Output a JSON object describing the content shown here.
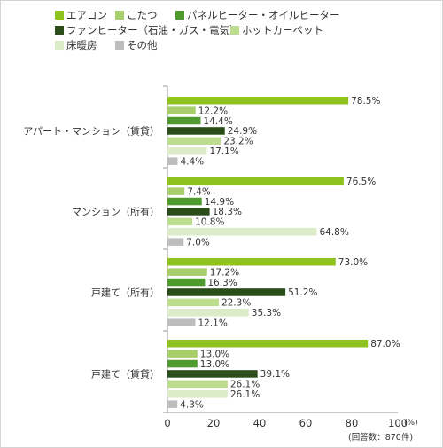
{
  "chart_data": {
    "type": "bar",
    "orientation": "horizontal",
    "categories": [
      "アパート・マンション（賃貸）",
      "マンション（所有）",
      "戸建て（所有）",
      "戸建て（賃貸）"
    ],
    "series": [
      {
        "name": "エアコン",
        "color": "#8dc21f",
        "values": [
          78.5,
          76.5,
          73.0,
          87.0
        ]
      },
      {
        "name": "こたつ",
        "color": "#a8ce6c",
        "values": [
          12.2,
          7.4,
          17.2,
          13.0
        ]
      },
      {
        "name": "パネルヒーター・オイルヒーター",
        "color": "#4e9a2e",
        "values": [
          14.4,
          14.9,
          16.3,
          13.0
        ]
      },
      {
        "name": "ファンヒーター（石油・ガス・電気）",
        "color": "#2a4d1a",
        "values": [
          24.9,
          18.3,
          51.2,
          39.1
        ]
      },
      {
        "name": "ホットカーペット",
        "color": "#bcdc8e",
        "values": [
          23.2,
          10.8,
          22.3,
          26.1
        ]
      },
      {
        "name": "床暖房",
        "color": "#dcebc8",
        "values": [
          17.1,
          64.8,
          35.3,
          26.1
        ]
      },
      {
        "name": "その他",
        "color": "#bdbdbd",
        "values": [
          4.4,
          7.0,
          12.1,
          4.3
        ]
      }
    ],
    "value_labels": [
      [
        "78.5%",
        "12.2%",
        "14.4%",
        "24.9%",
        "23.2%",
        "17.1%",
        "4.4%"
      ],
      [
        "76.5%",
        "7.4%",
        "14.9%",
        "18.3%",
        "10.8%",
        "64.8%",
        "7.0%"
      ],
      [
        "73.0%",
        "17.2%",
        "16.3%",
        "51.2%",
        "22.3%",
        "35.3%",
        "12.1%"
      ],
      [
        "87.0%",
        "13.0%",
        "13.0%",
        "39.1%",
        "26.1%",
        "26.1%",
        "4.3%"
      ]
    ],
    "xlim": [
      0,
      100
    ],
    "x_ticks": [
      "0",
      "20",
      "40",
      "60",
      "80",
      "100"
    ],
    "x_unit": "(%)",
    "legend_position": "top",
    "grid": false
  },
  "note": "(回答数：870件)"
}
